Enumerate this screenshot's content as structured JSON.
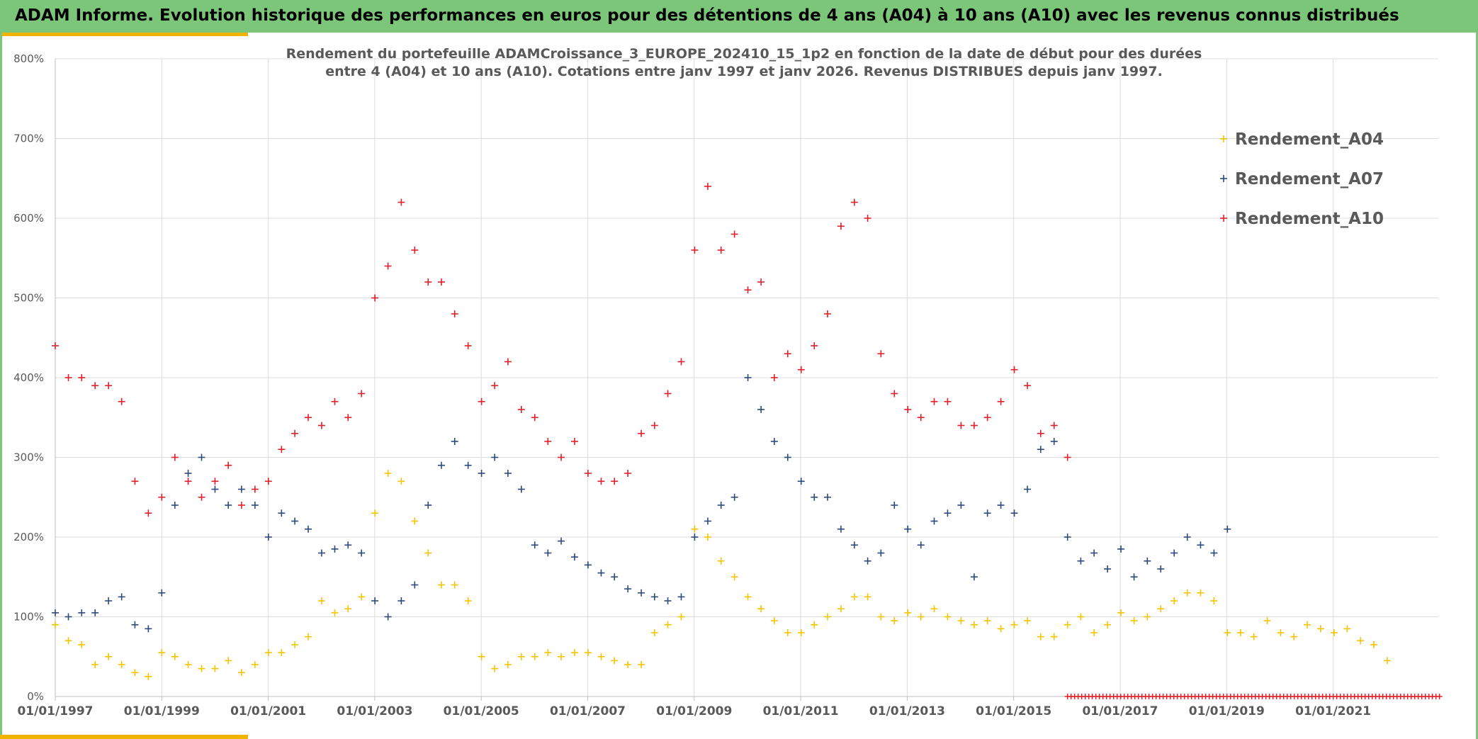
{
  "header": {
    "title": "ADAM Informe. Evolution historique des performances en euros pour des détentions de 4 ans (A04) à 10 ans (A10) avec les revenus connus distribués"
  },
  "chart_data": {
    "type": "scatter",
    "title": "",
    "subtitle_lines": [
      "Rendement du portefeuille ADAMCroissance_3_EUROPE_202410_15_1p2  en fonction de la date de début pour des durées",
      "entre 4 (A04) et 10 ans (A10). Cotations entre janv 1997 et janv 2026. Revenus DISTRIBUES depuis janv 1997."
    ],
    "xlabel": "",
    "ylabel": "",
    "x_axis": {
      "type": "date",
      "range": [
        "1997-01-01",
        "2023-01-01"
      ],
      "tick_labels": [
        "01/01/1997",
        "01/01/1999",
        "01/01/2001",
        "01/01/2003",
        "01/01/2005",
        "01/01/2007",
        "01/01/2009",
        "01/01/2011",
        "01/01/2013",
        "01/01/2015",
        "01/01/2017",
        "01/01/2019",
        "01/01/2021"
      ]
    },
    "y_axis": {
      "range": [
        0,
        800
      ],
      "unit": "%",
      "tick_labels": [
        "0%",
        "100%",
        "200%",
        "300%",
        "400%",
        "500%",
        "600%",
        "700%",
        "800%"
      ]
    },
    "grid": true,
    "legend": {
      "placement": "top-right"
    },
    "marker": "plus",
    "series": [
      {
        "name": "Rendement_A04",
        "color": "#f5c400",
        "x": [
          "1997-01-01",
          "1997-04-01",
          "1997-07-01",
          "1997-10-01",
          "1998-01-01",
          "1998-04-01",
          "1998-07-01",
          "1998-10-01",
          "1999-01-01",
          "1999-04-01",
          "1999-07-01",
          "1999-10-01",
          "2000-01-01",
          "2000-04-01",
          "2000-07-01",
          "2000-10-01",
          "2001-01-01",
          "2001-04-01",
          "2001-07-01",
          "2001-10-01",
          "2002-01-01",
          "2002-04-01",
          "2002-07-01",
          "2002-10-01",
          "2003-01-01",
          "2003-04-01",
          "2003-07-01",
          "2003-10-01",
          "2004-01-01",
          "2004-04-01",
          "2004-07-01",
          "2004-10-01",
          "2005-01-01",
          "2005-04-01",
          "2005-07-01",
          "2005-10-01",
          "2006-01-01",
          "2006-04-01",
          "2006-07-01",
          "2006-10-01",
          "2007-01-01",
          "2007-04-01",
          "2007-07-01",
          "2007-10-01",
          "2008-01-01",
          "2008-04-01",
          "2008-07-01",
          "2008-10-01",
          "2009-01-01",
          "2009-04-01",
          "2009-07-01",
          "2009-10-01",
          "2010-01-01",
          "2010-04-01",
          "2010-07-01",
          "2010-10-01",
          "2011-01-01",
          "2011-04-01",
          "2011-07-01",
          "2011-10-01",
          "2012-01-01",
          "2012-04-01",
          "2012-07-01",
          "2012-10-01",
          "2013-01-01",
          "2013-04-01",
          "2013-07-01",
          "2013-10-01",
          "2014-01-01",
          "2014-04-01",
          "2014-07-01",
          "2014-10-01",
          "2015-01-01",
          "2015-04-01",
          "2015-07-01",
          "2015-10-01",
          "2016-01-01",
          "2016-04-01",
          "2016-07-01",
          "2016-10-01",
          "2017-01-01",
          "2017-04-01",
          "2017-07-01",
          "2017-10-01",
          "2018-01-01",
          "2018-04-01",
          "2018-07-01",
          "2018-10-01",
          "2019-01-01",
          "2019-04-01",
          "2019-07-01",
          "2019-10-01",
          "2020-01-01",
          "2020-04-01",
          "2020-07-01",
          "2020-10-01",
          "2021-01-01",
          "2021-04-01",
          "2021-07-01",
          "2021-10-01",
          "2022-01-01"
        ],
        "values": [
          90,
          70,
          65,
          40,
          50,
          40,
          30,
          25,
          55,
          50,
          40,
          35,
          35,
          45,
          30,
          40,
          55,
          55,
          65,
          75,
          120,
          105,
          110,
          125,
          230,
          280,
          270,
          220,
          180,
          140,
          140,
          120,
          50,
          35,
          40,
          50,
          50,
          55,
          50,
          55,
          55,
          50,
          45,
          40,
          40,
          80,
          90,
          100,
          210,
          200,
          170,
          150,
          125,
          110,
          95,
          80,
          80,
          90,
          100,
          110,
          125,
          125,
          100,
          95,
          105,
          100,
          110,
          100,
          95,
          90,
          95,
          85,
          90,
          95,
          75,
          75,
          90,
          100,
          80,
          90,
          105,
          95,
          100,
          110,
          120,
          130,
          130,
          120,
          80,
          80,
          75,
          95,
          80,
          75,
          90,
          85,
          80,
          85,
          70,
          65,
          45
        ]
      },
      {
        "name": "Rendement_A07",
        "color": "#2e4a7d",
        "x": [
          "1997-01-01",
          "1997-04-01",
          "1997-07-01",
          "1997-10-01",
          "1998-01-01",
          "1998-04-01",
          "1998-07-01",
          "1998-10-01",
          "1999-01-01",
          "1999-04-01",
          "1999-07-01",
          "1999-10-01",
          "2000-01-01",
          "2000-04-01",
          "2000-07-01",
          "2000-10-01",
          "2001-01-01",
          "2001-04-01",
          "2001-07-01",
          "2001-10-01",
          "2002-01-01",
          "2002-04-01",
          "2002-07-01",
          "2002-10-01",
          "2003-01-01",
          "2003-04-01",
          "2003-07-01",
          "2003-10-01",
          "2004-01-01",
          "2004-04-01",
          "2004-07-01",
          "2004-10-01",
          "2005-01-01",
          "2005-04-01",
          "2005-07-01",
          "2005-10-01",
          "2006-01-01",
          "2006-04-01",
          "2006-07-01",
          "2006-10-01",
          "2007-01-01",
          "2007-04-01",
          "2007-07-01",
          "2007-10-01",
          "2008-01-01",
          "2008-04-01",
          "2008-07-01",
          "2008-10-01",
          "2009-01-01",
          "2009-04-01",
          "2009-07-01",
          "2009-10-01",
          "2010-01-01",
          "2010-04-01",
          "2010-07-01",
          "2010-10-01",
          "2011-01-01",
          "2011-04-01",
          "2011-07-01",
          "2011-10-01",
          "2012-01-01",
          "2012-04-01",
          "2012-07-01",
          "2012-10-01",
          "2013-01-01",
          "2013-04-01",
          "2013-07-01",
          "2013-10-01",
          "2014-01-01",
          "2014-04-01",
          "2014-07-01",
          "2014-10-01",
          "2015-01-01",
          "2015-04-01",
          "2015-07-01",
          "2015-10-01",
          "2016-01-01",
          "2016-04-01",
          "2016-07-01",
          "2016-10-01",
          "2017-01-01",
          "2017-04-01",
          "2017-07-01",
          "2017-10-01",
          "2018-01-01",
          "2018-04-01",
          "2018-07-01",
          "2018-10-01",
          "2019-01-01"
        ],
        "values": [
          105,
          100,
          105,
          105,
          120,
          125,
          90,
          85,
          130,
          240,
          280,
          300,
          260,
          240,
          260,
          240,
          200,
          230,
          220,
          210,
          180,
          185,
          190,
          180,
          120,
          100,
          120,
          140,
          240,
          290,
          320,
          290,
          280,
          300,
          280,
          260,
          190,
          180,
          195,
          175,
          165,
          155,
          150,
          135,
          130,
          125,
          120,
          125,
          200,
          220,
          240,
          250,
          400,
          360,
          320,
          300,
          270,
          250,
          250,
          210,
          190,
          170,
          180,
          240,
          210,
          190,
          220,
          230,
          240,
          150,
          230,
          240,
          230,
          260,
          310,
          320,
          200,
          170,
          180,
          160,
          185,
          150,
          170,
          160,
          180,
          200,
          190,
          180,
          210
        ]
      },
      {
        "name": "Rendement_A10",
        "color": "#e0202a",
        "x": [
          "1997-01-01",
          "1997-04-01",
          "1997-07-01",
          "1997-10-01",
          "1998-01-01",
          "1998-04-01",
          "1998-07-01",
          "1998-10-01",
          "1999-01-01",
          "1999-04-01",
          "1999-07-01",
          "1999-10-01",
          "2000-01-01",
          "2000-04-01",
          "2000-07-01",
          "2000-10-01",
          "2001-01-01",
          "2001-04-01",
          "2001-07-01",
          "2001-10-01",
          "2002-01-01",
          "2002-04-01",
          "2002-07-01",
          "2002-10-01",
          "2003-01-01",
          "2003-04-01",
          "2003-07-01",
          "2003-10-01",
          "2004-01-01",
          "2004-04-01",
          "2004-07-01",
          "2004-10-01",
          "2005-01-01",
          "2005-04-01",
          "2005-07-01",
          "2005-10-01",
          "2006-01-01",
          "2006-04-01",
          "2006-07-01",
          "2006-10-01",
          "2007-01-01",
          "2007-04-01",
          "2007-07-01",
          "2007-10-01",
          "2008-01-01",
          "2008-04-01",
          "2008-07-01",
          "2008-10-01",
          "2009-01-01",
          "2009-04-01",
          "2009-07-01",
          "2009-10-01",
          "2010-01-01",
          "2010-04-01",
          "2010-07-01",
          "2010-10-01",
          "2011-01-01",
          "2011-04-01",
          "2011-07-01",
          "2011-10-01",
          "2012-01-01",
          "2012-04-01",
          "2012-07-01",
          "2012-10-01",
          "2013-01-01",
          "2013-04-01",
          "2013-07-01",
          "2013-10-01",
          "2014-01-01",
          "2014-04-01",
          "2014-07-01",
          "2014-10-01",
          "2015-01-01",
          "2015-04-01",
          "2015-07-01",
          "2015-10-01",
          "2016-01-01"
        ],
        "values": [
          440,
          400,
          400,
          390,
          390,
          370,
          270,
          230,
          250,
          300,
          270,
          250,
          270,
          290,
          240,
          260,
          270,
          310,
          330,
          350,
          340,
          370,
          350,
          380,
          500,
          540,
          620,
          560,
          520,
          520,
          480,
          440,
          370,
          390,
          420,
          360,
          350,
          320,
          300,
          320,
          280,
          270,
          270,
          280,
          330,
          340,
          380,
          420,
          560,
          640,
          560,
          580,
          510,
          520,
          400,
          430,
          410,
          440,
          480,
          590,
          620,
          600,
          430,
          380,
          360,
          350,
          370,
          370,
          340,
          340,
          350,
          370,
          410,
          390,
          330,
          340,
          300
        ]
      }
    ],
    "reference_markers": {
      "color": "#e0202a",
      "x_range": [
        "2016-01-01",
        "2023-01-01"
      ],
      "value": 0
    }
  }
}
